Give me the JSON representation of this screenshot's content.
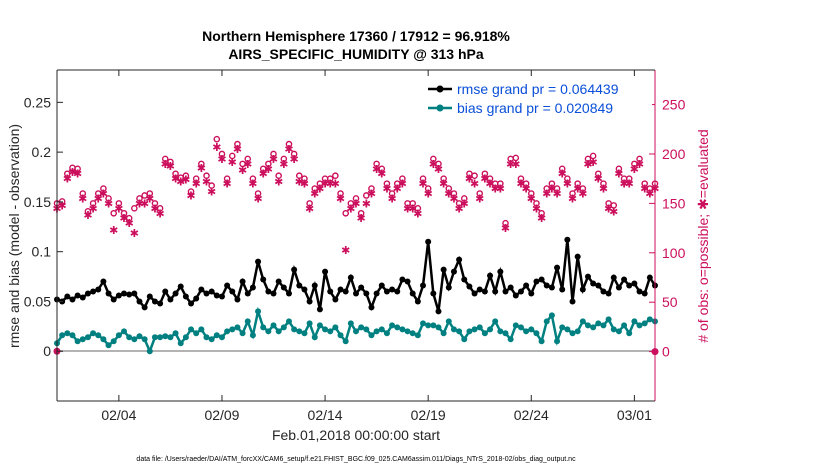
{
  "chart_data": {
    "type": "line",
    "title": "Northern Hemisphere 17360 / 17912 = 96.918%",
    "subtitle": "AIRS_SPECIFIC_HUMIDITY @ 313 hPa",
    "xlabel": "Feb.01,2018 00:00:00 start",
    "ylabel": "rmse and bias (model - observation)",
    "ylabel_right": "# of obs: o=possible; ✱=evaluated",
    "footer": "data file: /Users/raeder/DAI/ATM_forcXX/CAM6_setup/f.e21.FHIST_BGC.f09_025.CAM6assim.011/Diags_NTrS_2018-02/obs_diag_output.nc",
    "x_tick_labels": [
      "02/04",
      "02/09",
      "02/14",
      "02/19",
      "02/24",
      "03/01"
    ],
    "x_tick_days": [
      3,
      8,
      13,
      18,
      23,
      28
    ],
    "x_range_days": [
      0,
      29
    ],
    "x_step_days": 0.25,
    "ylim": [
      -0.05,
      0.2825
    ],
    "y_ticks": [
      0,
      0.05,
      0.1,
      0.15,
      0.2,
      0.25
    ],
    "y_tick_labels": [
      "0",
      "0.05",
      "0.1",
      "0.15",
      "0.2",
      "0.25"
    ],
    "ylim_right": [
      -50,
      285
    ],
    "y_ticks_right": [
      0,
      50,
      100,
      150,
      200,
      250
    ],
    "y_tick_labels_right": [
      "0",
      "50",
      "100",
      "150",
      "200",
      "250"
    ],
    "grid": false,
    "legend_position": "top-right",
    "colors": {
      "rmse": "#000000",
      "bias": "#008080",
      "obs": "#cc0f5c",
      "legend_text": "#0a4fd8",
      "zero_line": "#b3b3b3"
    },
    "series": [
      {
        "name": "rmse grand pr = 0.064439",
        "axis": "left",
        "values": [
          0.052,
          0.05,
          0.055,
          0.052,
          0.056,
          0.054,
          0.058,
          0.06,
          0.062,
          0.07,
          0.058,
          0.052,
          0.056,
          0.058,
          0.057,
          0.058,
          0.05,
          0.044,
          0.055,
          0.05,
          0.048,
          0.06,
          0.052,
          0.058,
          0.065,
          0.055,
          0.048,
          0.053,
          0.062,
          0.058,
          0.06,
          0.056,
          0.055,
          0.066,
          0.06,
          0.052,
          0.07,
          0.058,
          0.064,
          0.09,
          0.072,
          0.06,
          0.058,
          0.07,
          0.064,
          0.058,
          0.082,
          0.066,
          0.062,
          0.05,
          0.066,
          0.042,
          0.08,
          0.06,
          0.052,
          0.062,
          0.06,
          0.074,
          0.058,
          0.064,
          0.058,
          0.044,
          0.058,
          0.066,
          0.06,
          0.062,
          0.06,
          0.072,
          0.07,
          0.058,
          0.05,
          0.066,
          0.11,
          0.058,
          0.04,
          0.082,
          0.064,
          0.08,
          0.092,
          0.072,
          0.065,
          0.058,
          0.062,
          0.06,
          0.076,
          0.06,
          0.08,
          0.06,
          0.064,
          0.056,
          0.06,
          0.066,
          0.058,
          0.07,
          0.072,
          0.066,
          0.064,
          0.084,
          0.062,
          0.112,
          0.05,
          0.095,
          0.062,
          0.075,
          0.068,
          0.066,
          0.06,
          0.058,
          0.074,
          0.064,
          0.072,
          0.066,
          0.068,
          0.06,
          0.058,
          0.074,
          0.066,
          0.07,
          0.066,
          0.074,
          0.07,
          0.06,
          0.078,
          0.068,
          0.066,
          0.072
        ]
      },
      {
        "name": "bias grand pr = 0.020849",
        "axis": "left",
        "values": [
          0.008,
          0.016,
          0.018,
          0.016,
          0.01,
          0.012,
          0.014,
          0.018,
          0.016,
          0.012,
          0.006,
          0.01,
          0.016,
          0.02,
          0.014,
          0.012,
          0.015,
          0.012,
          0.0,
          0.014,
          0.014,
          0.015,
          0.014,
          0.018,
          0.008,
          0.014,
          0.022,
          0.018,
          0.022,
          0.014,
          0.012,
          0.016,
          0.014,
          0.02,
          0.022,
          0.024,
          0.018,
          0.03,
          0.016,
          0.04,
          0.024,
          0.02,
          0.026,
          0.02,
          0.024,
          0.03,
          0.022,
          0.02,
          0.018,
          0.028,
          0.014,
          0.026,
          0.022,
          0.02,
          0.024,
          0.016,
          0.01,
          0.028,
          0.02,
          0.024,
          0.022,
          0.016,
          0.02,
          0.022,
          0.018,
          0.026,
          0.024,
          0.022,
          0.02,
          0.018,
          0.016,
          0.028,
          0.026,
          0.026,
          0.024,
          0.018,
          0.03,
          0.022,
          0.02,
          0.012,
          0.02,
          0.022,
          0.024,
          0.018,
          0.022,
          0.03,
          0.02,
          0.018,
          0.012,
          0.026,
          0.024,
          0.02,
          0.022,
          0.018,
          0.01,
          0.03,
          0.036,
          0.01,
          0.024,
          0.022,
          0.018,
          0.02,
          0.03,
          0.026,
          0.024,
          0.028,
          0.026,
          0.032,
          0.022,
          0.02,
          0.026,
          0.018,
          0.03,
          0.026,
          0.028,
          0.032,
          0.03,
          0.026,
          0.032,
          0.024,
          0.03,
          0.026,
          0.034,
          0.036,
          0.024,
          0.022
        ]
      },
      {
        "name": "# of obs possible",
        "axis": "right",
        "marker": "o",
        "values": [
          150,
          152,
          180,
          186,
          185,
          160,
          142,
          150,
          160,
          165,
          155,
          140,
          150,
          140,
          135,
          145,
          155,
          158,
          160,
          150,
          145,
          195,
          192,
          180,
          176,
          178,
          162,
          175,
          190,
          178,
          168,
          215,
          200,
          175,
          198,
          210,
          190,
          195,
          175,
          160,
          185,
          190,
          200,
          178,
          195,
          210,
          200,
          178,
          175,
          150,
          165,
          170,
          175,
          175,
          178,
          160,
          140,
          150,
          155,
          140,
          158,
          165,
          190,
          185,
          170,
          160,
          170,
          175,
          150,
          150,
          145,
          175,
          165,
          195,
          190,
          175,
          165,
          160,
          150,
          155,
          180,
          178,
          160,
          180,
          175,
          170,
          170,
          130,
          195,
          196,
          175,
          170,
          160,
          150,
          140,
          165,
          170,
          165,
          185,
          175,
          160,
          170,
          165,
          195,
          198,
          180,
          170,
          150,
          148,
          185,
          175,
          175,
          190,
          195,
          170,
          165,
          170,
          190,
          180,
          160,
          170,
          155,
          150,
          165,
          158,
          205,
          205
        ]
      },
      {
        "name": "# of obs evaluated",
        "axis": "right",
        "marker": "*",
        "values": [
          145,
          148,
          175,
          182,
          180,
          155,
          138,
          145,
          155,
          160,
          150,
          123,
          145,
          135,
          130,
          120,
          150,
          150,
          155,
          145,
          140,
          190,
          188,
          175,
          172,
          174,
          158,
          170,
          186,
          172,
          162,
          207,
          195,
          170,
          192,
          205,
          184,
          190,
          170,
          155,
          180,
          185,
          195,
          172,
          190,
          205,
          195,
          172,
          170,
          145,
          160,
          165,
          170,
          170,
          170,
          155,
          103,
          145,
          150,
          135,
          150,
          160,
          185,
          180,
          165,
          155,
          165,
          170,
          145,
          145,
          140,
          170,
          160,
          190,
          185,
          170,
          160,
          155,
          145,
          150,
          175,
          170,
          155,
          175,
          170,
          165,
          165,
          125,
          190,
          190,
          170,
          165,
          155,
          145,
          135,
          160,
          165,
          160,
          180,
          170,
          155,
          165,
          160,
          190,
          192,
          175,
          165,
          145,
          142,
          180,
          170,
          170,
          185,
          190,
          165,
          160,
          165,
          185,
          175,
          155,
          165,
          150,
          145,
          160,
          152,
          200,
          200
        ]
      }
    ]
  }
}
